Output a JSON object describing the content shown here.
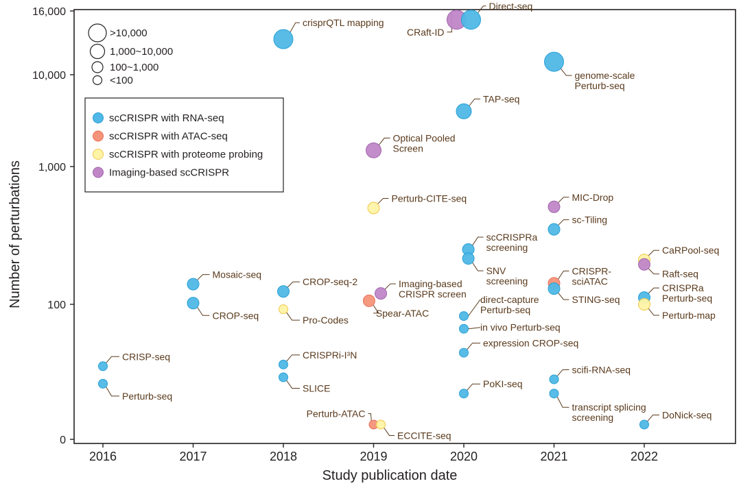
{
  "chart_data": {
    "type": "scatter",
    "xlabel": "Study publication date",
    "ylabel": "Number of perturbations",
    "x_ticks": [
      "2016",
      "2017",
      "2018",
      "2019",
      "2020",
      "2021",
      "2022"
    ],
    "y_ticks": [
      {
        "value": 0,
        "label": "0"
      },
      {
        "value": 100,
        "label": "100"
      },
      {
        "value": 1000,
        "label": "1,000"
      },
      {
        "value": 10000,
        "label": "10,000"
      },
      {
        "value": 16000,
        "label": "16,000"
      }
    ],
    "size_legend": [
      {
        "label": ">10,000",
        "size": "xl"
      },
      {
        "label": "1,000~10,000",
        "size": "l"
      },
      {
        "label": "100~1,000",
        "size": "m"
      },
      {
        "label": "<100",
        "size": "s"
      }
    ],
    "categories": [
      {
        "key": "rna",
        "label": "scCRISPR with RNA-seq",
        "fill": "#4fb8e6",
        "stroke": "#2a9fd6"
      },
      {
        "key": "atac",
        "label": "scCRISPR with ATAC-seq",
        "fill": "#f5937a",
        "stroke": "#e9705a"
      },
      {
        "key": "protein",
        "label": "scCRISPR with proteome probing",
        "fill": "#fff3a6",
        "stroke": "#f0c84a"
      },
      {
        "key": "imaging",
        "label": "Imaging-based scCRISPR",
        "fill": "#c086c7",
        "stroke": "#a166ad"
      }
    ],
    "points": [
      {
        "name": "CRISP-seq",
        "year": 2016.0,
        "value": 35,
        "category": "rna",
        "size": "s",
        "label": "CRISP-seq"
      },
      {
        "name": "Perturb-seq",
        "year": 2016.0,
        "value": 26,
        "category": "rna",
        "size": "s",
        "label": "Perturb-seq"
      },
      {
        "name": "Mosaic-seq",
        "year": 2017.0,
        "value": 140,
        "category": "rna",
        "size": "m",
        "label": "Mosaic-seq"
      },
      {
        "name": "CROP-seq",
        "year": 2017.0,
        "value": 102,
        "category": "rna",
        "size": "m",
        "label": "CROP-seq"
      },
      {
        "name": "crisprQTL mapping",
        "year": 2018.0,
        "value": 13000,
        "category": "rna",
        "size": "xl",
        "label": "crisprQTL mapping"
      },
      {
        "name": "CROP-seq-2",
        "year": 2018.0,
        "value": 124,
        "category": "rna",
        "size": "m",
        "label": "CROP-seq-2"
      },
      {
        "name": "Pro-Codes",
        "year": 2018.0,
        "value": 92,
        "category": "protein",
        "size": "s",
        "label": "Pro-Codes"
      },
      {
        "name": "CRISPRi-I3N",
        "year": 2018.0,
        "value": 36,
        "category": "rna",
        "size": "s",
        "label": "CRISPRi-I³N"
      },
      {
        "name": "SLICE",
        "year": 2018.0,
        "value": 29,
        "category": "rna",
        "size": "s",
        "label": "SLICE"
      },
      {
        "name": "Optical Pooled Screen",
        "year": 2019.0,
        "value": 1500,
        "category": "imaging",
        "size": "l",
        "label": "Optical Pooled\nScreen"
      },
      {
        "name": "Perturb-CITE-seq",
        "year": 2019.0,
        "value": 500,
        "category": "protein",
        "size": "m",
        "label": "Perturb-CITE-seq"
      },
      {
        "name": "Imaging-based CRISPR screen",
        "year": 2019.08,
        "value": 120,
        "category": "imaging",
        "size": "m",
        "label": "Imaging-based\nCRISPR screen"
      },
      {
        "name": "Spear-ATAC",
        "year": 2018.95,
        "value": 106,
        "category": "atac",
        "size": "m",
        "label": "Spear-ATAC"
      },
      {
        "name": "Perturb-ATAC",
        "year": 2019.0,
        "value": 13,
        "category": "atac",
        "size": "s",
        "label": "Perturb-ATAC"
      },
      {
        "name": "ECCITE-seq",
        "year": 2019.08,
        "value": 13,
        "category": "protein",
        "size": "s",
        "label": "ECCITE-seq"
      },
      {
        "name": "CRaft-ID",
        "year": 2019.92,
        "value": 15000,
        "category": "imaging",
        "size": "xl",
        "label": "CRaft-ID"
      },
      {
        "name": "Direct-seq",
        "year": 2020.08,
        "value": 15000,
        "category": "rna",
        "size": "xl",
        "label": "Direct-seq"
      },
      {
        "name": "TAP-seq",
        "year": 2020.0,
        "value": 4000,
        "category": "rna",
        "size": "l",
        "label": "TAP-seq"
      },
      {
        "name": "scCRISPRa screening",
        "year": 2020.05,
        "value": 250,
        "category": "rna",
        "size": "m",
        "label": "scCRISPRa\nscreening"
      },
      {
        "name": "SNV screening",
        "year": 2020.05,
        "value": 215,
        "category": "rna",
        "size": "m",
        "label": "SNV\nscreening"
      },
      {
        "name": "direct-capture Perturb-seq",
        "year": 2020.0,
        "value": 82,
        "category": "rna",
        "size": "s",
        "label": "direct-capture\nPerturb-seq"
      },
      {
        "name": "in vivo Perturb-seq",
        "year": 2020.0,
        "value": 66,
        "category": "rna",
        "size": "s",
        "label": "in vivo Perturb-seq"
      },
      {
        "name": "expression CROP-seq",
        "year": 2020.0,
        "value": 44,
        "category": "rna",
        "size": "s",
        "label": "expression CROP-seq"
      },
      {
        "name": "PoKI-seq",
        "year": 2020.0,
        "value": 22,
        "category": "rna",
        "size": "s",
        "label": "PoKI-seq"
      },
      {
        "name": "genome-scale Perturb-seq",
        "year": 2021.0,
        "value": 11000,
        "category": "rna",
        "size": "xl",
        "label": "genome-scale\nPerturb-seq"
      },
      {
        "name": "MIC-Drop",
        "year": 2021.0,
        "value": 510,
        "category": "imaging",
        "size": "m",
        "label": "MIC-Drop"
      },
      {
        "name": "sc-Tiling",
        "year": 2021.0,
        "value": 350,
        "category": "rna",
        "size": "m",
        "label": "sc-Tiling"
      },
      {
        "name": "CRISPR-sciATAC",
        "year": 2021.0,
        "value": 142,
        "category": "atac",
        "size": "m",
        "label": "CRISPR-\nsciATAC"
      },
      {
        "name": "STING-seq",
        "year": 2021.0,
        "value": 130,
        "category": "rna",
        "size": "m",
        "label": "STING-seq"
      },
      {
        "name": "scifi-RNA-seq",
        "year": 2021.0,
        "value": 28,
        "category": "rna",
        "size": "s",
        "label": "scifi-RNA-seq"
      },
      {
        "name": "transcript splicing screening",
        "year": 2021.0,
        "value": 22,
        "category": "rna",
        "size": "s",
        "label": "transcript splicing\nscreening"
      },
      {
        "name": "CaRPool-seq",
        "year": 2022.0,
        "value": 210,
        "category": "protein",
        "size": "m",
        "label": "CaRPool-seq"
      },
      {
        "name": "Raft-seq",
        "year": 2022.0,
        "value": 195,
        "category": "imaging",
        "size": "m",
        "label": "Raft-seq"
      },
      {
        "name": "CRISPRa Perturb-seq",
        "year": 2022.0,
        "value": 112,
        "category": "rna",
        "size": "m",
        "label": "CRISPRa\nPerturb-seq"
      },
      {
        "name": "Perturb-map",
        "year": 2022.0,
        "value": 100,
        "category": "protein",
        "size": "m",
        "label": "Perturb-map"
      },
      {
        "name": "DoNick-seq",
        "year": 2022.0,
        "value": 13,
        "category": "rna",
        "size": "s",
        "label": "DoNick-seq"
      }
    ]
  }
}
